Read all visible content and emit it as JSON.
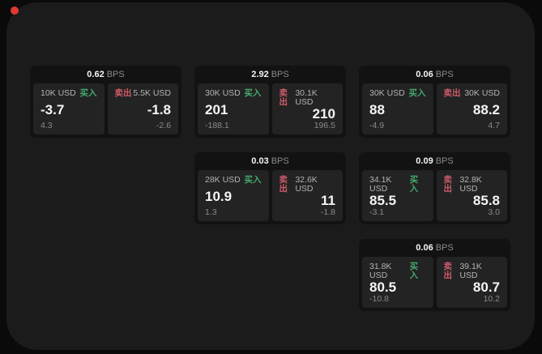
{
  "window": {
    "record_dot_color": "#e03a30"
  },
  "labels": {
    "bps_suffix": "BPS",
    "buy": "买入",
    "sell": "卖出"
  },
  "colors": {
    "background": "#0a0a0a",
    "panel": "#1b1b1b",
    "card": "#121212",
    "tile": "#232323",
    "buy_green": "#44a96d",
    "sell_red": "#cf5a68",
    "value_white": "#f5f5f5",
    "muted_gray": "#8a8a8a",
    "amount_gray": "#b3b3b3"
  },
  "cards": [
    {
      "bps": "0.62",
      "row": 1,
      "col": 1,
      "buy": {
        "amount": "10K USD",
        "value": "-3.7",
        "sub": "4.3"
      },
      "sell": {
        "amount": "5.5K USD",
        "value": "-1.8",
        "sub": "-2.6"
      }
    },
    {
      "bps": "2.92",
      "row": 1,
      "col": 2,
      "buy": {
        "amount": "30K USD",
        "value": "201",
        "sub": "-188.1"
      },
      "sell": {
        "amount": "30.1K USD",
        "value": "210",
        "sub": "196.5"
      }
    },
    {
      "bps": "0.06",
      "row": 1,
      "col": 3,
      "buy": {
        "amount": "30K USD",
        "value": "88",
        "sub": "-4.9"
      },
      "sell": {
        "amount": "30K USD",
        "value": "88.2",
        "sub": "4.7"
      }
    },
    {
      "bps": "0.03",
      "row": 2,
      "col": 2,
      "buy": {
        "amount": "28K USD",
        "value": "10.9",
        "sub": "1.3"
      },
      "sell": {
        "amount": "32.6K USD",
        "value": "11",
        "sub": "-1.8"
      }
    },
    {
      "bps": "0.09",
      "row": 2,
      "col": 3,
      "buy": {
        "amount": "34.1K USD",
        "value": "85.5",
        "sub": "-3.1"
      },
      "sell": {
        "amount": "32.8K USD",
        "value": "85.8",
        "sub": "3.0"
      }
    },
    {
      "bps": "0.06",
      "row": 3,
      "col": 3,
      "buy": {
        "amount": "31.8K USD",
        "value": "80.5",
        "sub": "-10.8"
      },
      "sell": {
        "amount": "39.1K USD",
        "value": "80.7",
        "sub": "10.2"
      }
    }
  ]
}
